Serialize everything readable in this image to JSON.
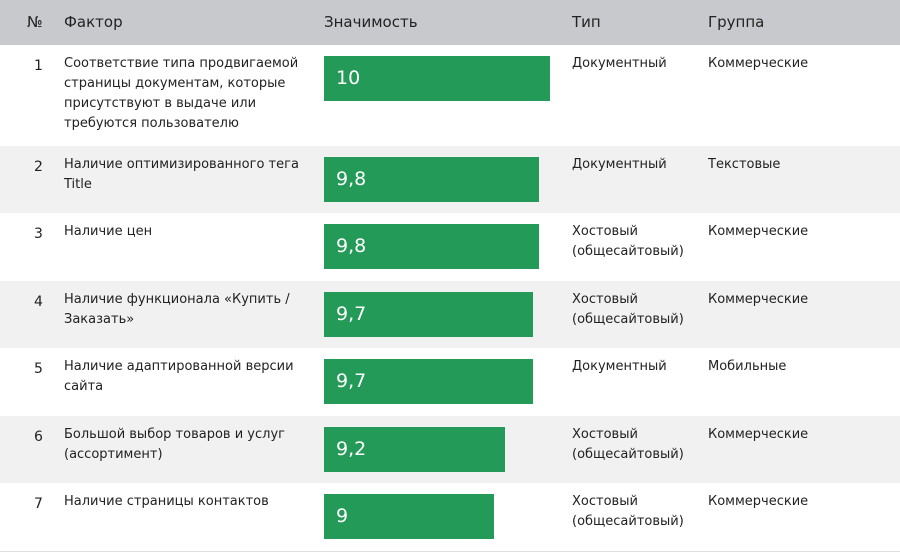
{
  "header": {
    "num": "№",
    "factor": "Фактор",
    "importance": "Значимость",
    "type": "Тип",
    "group": "Группа"
  },
  "rows": [
    {
      "num": "1",
      "factor": "Соответствие типа продвигаемой страницы документам, которые присутствуют в выдаче или требуются пользователю",
      "value_label": "10",
      "type": "Документный",
      "group": "Коммерческие"
    },
    {
      "num": "2",
      "factor": "Наличие оптимизированного тега Title",
      "value_label": "9,8",
      "type": "Документный",
      "group": "Текстовые"
    },
    {
      "num": "3",
      "factor": "Наличие цен",
      "value_label": "9,8",
      "type": "Хостовый (общесайтовый)",
      "group": "Коммерческие"
    },
    {
      "num": "4",
      "factor": "Наличие функционала «Купить / Заказать»",
      "value_label": "9,7",
      "type": "Хостовый (общесайтовый)",
      "group": "Коммерческие"
    },
    {
      "num": "5",
      "factor": "Наличие адаптированной версии сайта",
      "value_label": "9,7",
      "type": "Документный",
      "group": "Мобильные"
    },
    {
      "num": "6",
      "factor": "Большой выбор товаров и услуг (ассортимент)",
      "value_label": "9,2",
      "type": "Хостовый (общесайтовый)",
      "group": "Коммерческие"
    },
    {
      "num": "7",
      "factor": "Наличие страницы контактов",
      "value_label": "9",
      "type": "Хостовый (общесайтовый)",
      "group": "Коммерческие"
    }
  ],
  "chart_data": {
    "type": "bar",
    "orientation": "horizontal",
    "categories": [
      "1",
      "2",
      "3",
      "4",
      "5",
      "6",
      "7"
    ],
    "values": [
      10,
      9.8,
      9.8,
      9.7,
      9.7,
      9.2,
      9
    ],
    "xlim": [
      0,
      10
    ],
    "bar_color": "#239a57"
  }
}
